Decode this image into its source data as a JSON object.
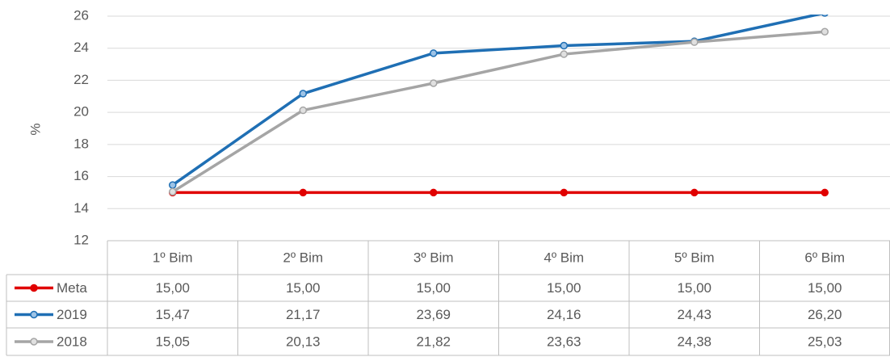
{
  "chart_data": {
    "type": "line",
    "y_label": "%",
    "categories": [
      "1º Bim",
      "2º Bim",
      "3º Bim",
      "4º Bim",
      "5º Bim",
      "6º Bim"
    ],
    "series": [
      {
        "name": "Meta",
        "color": "#e00000",
        "marker_fill": "#e00000",
        "values": [
          15,
          15,
          15,
          15,
          15,
          15
        ],
        "value_labels": [
          "15,00",
          "15,00",
          "15,00",
          "15,00",
          "15,00",
          "15,00"
        ]
      },
      {
        "name": "2019",
        "color": "#1f6fb4",
        "marker_fill": "#9dc3e6",
        "values": [
          15.47,
          21.17,
          23.69,
          24.16,
          24.43,
          26.2
        ],
        "value_labels": [
          "15,47",
          "21,17",
          "23,69",
          "24,16",
          "24,43",
          "26,20"
        ]
      },
      {
        "name": "2018",
        "color": "#a5a5a5",
        "marker_fill": "#e0e0e0",
        "values": [
          15.05,
          20.13,
          21.82,
          23.63,
          24.38,
          25.03
        ],
        "value_labels": [
          "15,05",
          "20,13",
          "21,82",
          "23,63",
          "24,38",
          "25,03"
        ]
      }
    ],
    "ylim": [
      12,
      26
    ],
    "yticks": [
      12,
      14,
      16,
      18,
      20,
      22,
      24,
      26
    ],
    "grid": true
  }
}
